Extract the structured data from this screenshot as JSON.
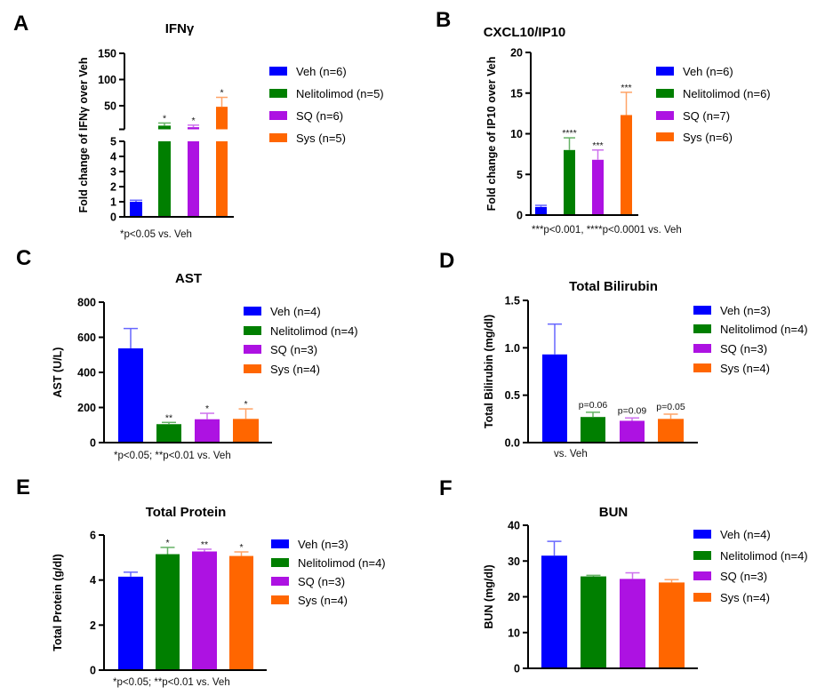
{
  "colors": {
    "Veh": "#0000ff",
    "Nelitolimod": "#007f00",
    "SQ": "#ad12e2",
    "Sys": "#ff6600"
  },
  "chart_data": [
    {
      "panel": "A",
      "type": "bar",
      "title": "IFNγ",
      "ylabel": "Fold change of IFNγ over Veh",
      "categories": [
        "Veh",
        "Nelitolimod",
        "SQ",
        "Sys"
      ],
      "legend": [
        "Veh (n=6)",
        "Nelitolimod (n=5)",
        "SQ (n=6)",
        "Sys (n=5)"
      ],
      "values": [
        1.0,
        12,
        9,
        48
      ],
      "errors": [
        0.1,
        5,
        4,
        18
      ],
      "annotations": [
        "",
        "*",
        "*",
        "*"
      ],
      "broken_axis": true,
      "ylim_lower": [
        0,
        5
      ],
      "yticks_lower": [
        "0",
        "1",
        "2",
        "3",
        "4",
        "5"
      ],
      "ylim_upper": [
        5,
        150
      ],
      "yticks_upper": [
        "50",
        "100",
        "150"
      ],
      "footnote": "*p<0.05 vs. Veh"
    },
    {
      "panel": "B",
      "type": "bar",
      "title": "CXCL10/IP10",
      "ylabel": "Fold change of IP10 over Veh",
      "categories": [
        "Veh",
        "Nelitolimod",
        "SQ",
        "Sys"
      ],
      "legend": [
        "Veh (n=6)",
        "Nelitolimod (n=6)",
        "SQ (n=7)",
        "Sys (n=6)"
      ],
      "values": [
        1.0,
        8.0,
        6.8,
        12.3
      ],
      "errors": [
        0.2,
        1.5,
        1.2,
        2.8
      ],
      "annotations": [
        "",
        "****",
        "***",
        "***"
      ],
      "ylim": [
        0,
        20
      ],
      "yticks": [
        "0",
        "5",
        "10",
        "15",
        "20"
      ],
      "footnote": "***p<0.001, ****p<0.0001 vs. Veh"
    },
    {
      "panel": "C",
      "type": "bar",
      "title": "AST",
      "ylabel": "AST (U/L)",
      "categories": [
        "Veh",
        "Nelitolimod",
        "SQ",
        "Sys"
      ],
      "legend": [
        "Veh (n=4)",
        "Nelitolimod (n=4)",
        "SQ (n=3)",
        "Sys (n=4)"
      ],
      "values": [
        537,
        105,
        133,
        135
      ],
      "errors": [
        113,
        10,
        34,
        57
      ],
      "annotations": [
        "",
        "**",
        "*",
        "*"
      ],
      "ylim": [
        0,
        800
      ],
      "yticks": [
        "0",
        "200",
        "400",
        "600",
        "800"
      ],
      "footnote": "*p<0.05; **p<0.01 vs. Veh"
    },
    {
      "panel": "D",
      "type": "bar",
      "title": "Total Bilirubin",
      "ylabel": "Total Bilirubin (mg/dl)",
      "categories": [
        "Veh",
        "Nelitolimod",
        "SQ",
        "Sys"
      ],
      "legend": [
        "Veh (n=3)",
        "Nelitolimod (n=4)",
        "SQ (n=3)",
        "Sys (n=4)"
      ],
      "values": [
        0.93,
        0.27,
        0.23,
        0.25
      ],
      "errors": [
        0.32,
        0.05,
        0.03,
        0.05
      ],
      "annotations": [
        "",
        "p=0.06",
        "p=0.09",
        "p=0.05"
      ],
      "ylim": [
        0,
        1.5
      ],
      "yticks": [
        "0.0",
        "0.5",
        "1.0",
        "1.5"
      ],
      "footnote": "vs. Veh"
    },
    {
      "panel": "E",
      "type": "bar",
      "title": "Total Protein",
      "ylabel": "Total Protein (g/dl)",
      "categories": [
        "Veh",
        "Nelitolimod",
        "SQ",
        "Sys"
      ],
      "legend": [
        "Veh (n=3)",
        "Nelitolimod (n=4)",
        "SQ (n=3)",
        "Sys (n=4)"
      ],
      "values": [
        4.15,
        5.15,
        5.27,
        5.07
      ],
      "errors": [
        0.2,
        0.3,
        0.1,
        0.18
      ],
      "annotations": [
        "",
        "*",
        "**",
        "*"
      ],
      "ylim": [
        0,
        6
      ],
      "yticks": [
        "0",
        "2",
        "4",
        "6"
      ],
      "footnote": "*p<0.05; **p<0.01 vs. Veh"
    },
    {
      "panel": "F",
      "type": "bar",
      "title": "BUN",
      "ylabel": "BUN (mg/dl)",
      "categories": [
        "Veh",
        "Nelitolimod",
        "SQ",
        "Sys"
      ],
      "legend": [
        "Veh (n=4)",
        "Nelitolimod (n=4)",
        "SQ (n=3)",
        "Sys (n=4)"
      ],
      "values": [
        31.5,
        25.7,
        25.0,
        24.0
      ],
      "errors": [
        4.0,
        0.3,
        1.7,
        0.8
      ],
      "annotations": [
        "",
        "",
        "",
        ""
      ],
      "ylim": [
        0,
        40
      ],
      "yticks": [
        "0",
        "10",
        "20",
        "30",
        "40"
      ],
      "footnote": ""
    }
  ]
}
